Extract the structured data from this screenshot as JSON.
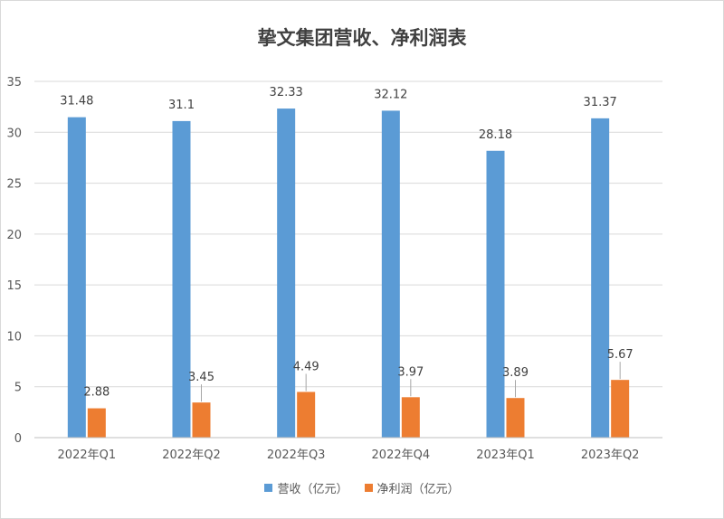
{
  "chart_data": {
    "type": "bar",
    "title": "挚文集团营收、净利润表",
    "categories": [
      "2022年Q1",
      "2022年Q2",
      "2022年Q3",
      "2022年Q4",
      "2023年Q1",
      "2023年Q2"
    ],
    "series": [
      {
        "name": "营收（亿元）",
        "values": [
          31.48,
          31.1,
          32.33,
          32.12,
          28.18,
          31.37
        ],
        "color": "#5b9bd5"
      },
      {
        "name": "净利润（亿元）",
        "values": [
          2.88,
          3.45,
          4.49,
          3.97,
          3.89,
          5.67
        ],
        "color": "#ed7d31"
      }
    ],
    "ylim": [
      0,
      35
    ],
    "yticks": [
      0,
      5,
      10,
      15,
      20,
      25,
      30,
      35
    ],
    "grid": true,
    "legend": "bottom"
  }
}
